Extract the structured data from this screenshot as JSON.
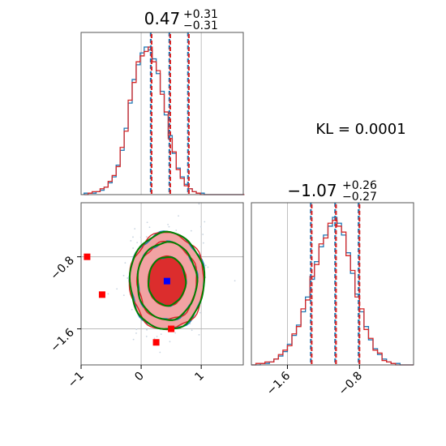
{
  "colors": {
    "series_a": "#1f77b4",
    "series_b": "#d62728",
    "contour_green": "#008000",
    "marker_blue": "#0000ff",
    "marker_red": "#ff0000",
    "fill_light": "#f2a3a3",
    "fill_dark": "#dc2d2d",
    "grid": "#b0b0b0",
    "scatter": "#c8d4e0"
  },
  "annotation": {
    "kl": "KL = 0.0001"
  },
  "chart_data": [
    {
      "type": "histogram",
      "panel": "marginal-x",
      "title": {
        "value": "0.47",
        "sup": "+0.31",
        "sub": "−0.31"
      },
      "xlim": [
        -1.0,
        1.7
      ],
      "grid": true,
      "quantiles": [
        0.16,
        0.47,
        0.78
      ],
      "series": [
        {
          "color": "#1f77b4",
          "bin_start": -0.95,
          "bin_width": 0.0667,
          "counts": [
            1,
            1,
            1,
            2,
            3,
            5,
            8,
            12,
            20,
            30,
            45,
            62,
            78,
            88,
            96,
            100,
            98,
            92,
            82,
            70,
            54,
            40,
            28,
            18,
            12,
            7,
            4,
            2,
            1,
            1,
            0,
            0,
            0,
            0,
            0,
            0,
            0,
            0,
            0,
            0
          ]
        },
        {
          "color": "#d62728",
          "bin_start": -0.95,
          "bin_width": 0.0667,
          "counts": [
            0,
            1,
            2,
            2,
            4,
            5,
            9,
            13,
            19,
            32,
            43,
            64,
            76,
            90,
            94,
            97,
            100,
            90,
            84,
            68,
            56,
            38,
            29,
            17,
            11,
            6,
            4,
            2,
            1,
            0,
            0,
            0,
            0,
            0,
            0,
            0,
            0,
            0,
            0,
            0
          ]
        }
      ]
    },
    {
      "type": "histogram",
      "panel": "marginal-y",
      "title": {
        "value": "−1.07",
        "sup": "+0.26",
        "sub": "−0.27"
      },
      "xlim": [
        -2.0,
        -0.2
      ],
      "xticks": [
        -1.6,
        -0.8
      ],
      "xtick_labels": [
        "−1.6",
        "−0.8"
      ],
      "grid": true,
      "quantiles": [
        -1.34,
        -1.07,
        -0.81
      ],
      "series": [
        {
          "color": "#1f77b4",
          "bin_start": -2.0,
          "bin_width": 0.05,
          "counts": [
            0,
            0,
            1,
            1,
            2,
            4,
            6,
            9,
            14,
            20,
            27,
            36,
            46,
            58,
            70,
            80,
            88,
            94,
            100,
            96,
            88,
            76,
            62,
            48,
            36,
            26,
            17,
            11,
            7,
            4,
            2,
            1,
            1,
            0,
            0,
            0
          ]
        },
        {
          "color": "#d62728",
          "bin_start": -2.0,
          "bin_width": 0.05,
          "counts": [
            0,
            1,
            1,
            2,
            2,
            4,
            7,
            10,
            13,
            21,
            26,
            38,
            44,
            60,
            68,
            82,
            86,
            96,
            98,
            94,
            90,
            74,
            64,
            46,
            38,
            24,
            18,
            10,
            8,
            3,
            2,
            1,
            0,
            0,
            0,
            0
          ]
        }
      ]
    },
    {
      "type": "contour",
      "panel": "joint",
      "xlim": [
        -1.0,
        1.7
      ],
      "ylim": [
        -2.0,
        -0.2
      ],
      "xticks": [
        -1,
        0,
        1
      ],
      "xtick_labels": [
        "−1",
        "0",
        "1"
      ],
      "yticks": [
        -0.8,
        -1.6
      ],
      "ytick_labels": [
        "−0.8",
        "−1.6"
      ],
      "grid": true,
      "center": {
        "x": 0.43,
        "y": -1.07
      },
      "sigma": {
        "x": 0.31,
        "y": 0.27
      },
      "contour_levels": [
        1.0,
        1.6,
        2.0
      ],
      "blue_marker": {
        "x": 0.43,
        "y": -1.07
      },
      "red_markers": [
        {
          "x": -0.9,
          "y": -0.8
        },
        {
          "x": -0.65,
          "y": -1.22
        },
        {
          "x": 0.25,
          "y": -1.75
        },
        {
          "x": 0.5,
          "y": -1.6
        }
      ]
    }
  ]
}
